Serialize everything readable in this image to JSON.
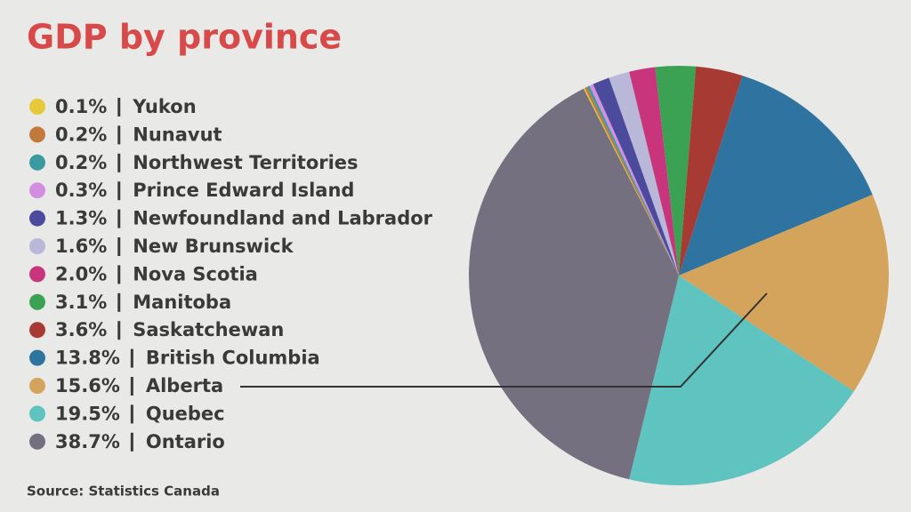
{
  "chart_data": {
    "type": "pie",
    "title": "GDP by province",
    "categories": [
      "Yukon",
      "Nunavut",
      "Northwest Territories",
      "Prince Edward Island",
      "Newfoundland and Labrador",
      "New Brunswick",
      "Nova Scotia",
      "Manitoba",
      "Saskatchewan",
      "British Columbia",
      "Alberta",
      "Quebec",
      "Ontario"
    ],
    "values": [
      0.1,
      0.2,
      0.2,
      0.3,
      1.3,
      1.6,
      2.0,
      3.1,
      3.6,
      13.8,
      15.6,
      19.5,
      38.7
    ],
    "value_labels": [
      "0.1%",
      "0.2%",
      "0.2%",
      "0.3%",
      "1.3%",
      "1.6%",
      "2.0%",
      "3.1%",
      "3.6%",
      "13.8%",
      "15.6%",
      "19.5%",
      "38.7%"
    ],
    "colors": [
      "#e6c838",
      "#c27a3c",
      "#3b9aa1",
      "#d48ee0",
      "#4b4a9c",
      "#bab8d9",
      "#c8357c",
      "#3ba253",
      "#a73b33",
      "#2f74a1",
      "#d4a45c",
      "#5fc3bf",
      "#757080"
    ],
    "source": "Source: Statistics Canada"
  }
}
